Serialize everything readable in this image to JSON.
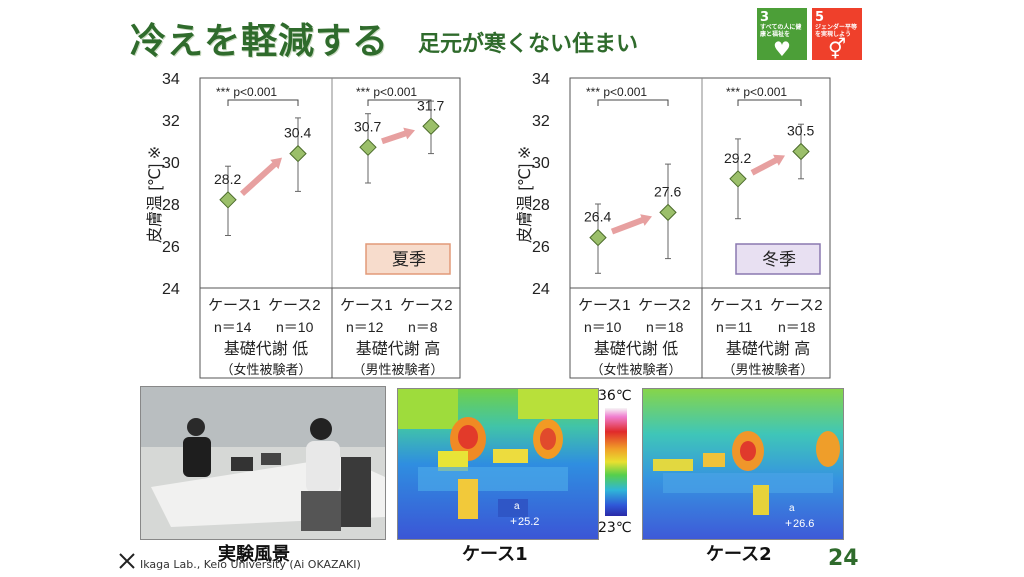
{
  "title": {
    "main": "冷えを軽減する",
    "sub": "足元が寒くない住まい"
  },
  "sdgs": [
    {
      "num": "3",
      "text": "すべての人に健康と福祉を",
      "icon": "♥",
      "color": "#4c9f38"
    },
    {
      "num": "5",
      "text": "ジェンダー平等を実現しよう",
      "icon": "⚥",
      "color": "#ef402b"
    }
  ],
  "chart_data": [
    {
      "type": "scatter",
      "season": "夏季",
      "ylabel": "皮膚温 [℃] ※",
      "ylim": [
        24,
        34
      ],
      "yticks": [
        24,
        26,
        28,
        30,
        32,
        34
      ],
      "groups": [
        {
          "label": "基礎代謝 低",
          "sub": "（女性被験者）",
          "cases": [
            "ケース1",
            "ケース2"
          ],
          "n": [
            "n＝14",
            "n＝10"
          ]
        },
        {
          "label": "基礎代謝 高",
          "sub": "（男性被験者）",
          "cases": [
            "ケース1",
            "ケース2"
          ],
          "n": [
            "n＝12",
            "n＝8"
          ]
        }
      ],
      "points": [
        {
          "value": 28.2,
          "err": [
            26.5,
            29.8
          ]
        },
        {
          "value": 30.4,
          "err": [
            28.6,
            32.1
          ]
        },
        {
          "value": 30.7,
          "err": [
            29.0,
            32.3
          ]
        },
        {
          "value": 31.7,
          "err": [
            30.4,
            32.9
          ]
        }
      ],
      "sig": [
        "*** p<0.001",
        "*** p<0.001"
      ]
    },
    {
      "type": "scatter",
      "season": "冬季",
      "ylabel": "皮膚温 [℃] ※",
      "ylim": [
        24,
        34
      ],
      "yticks": [
        24,
        26,
        28,
        30,
        32,
        34
      ],
      "groups": [
        {
          "label": "基礎代謝 低",
          "sub": "（女性被験者）",
          "cases": [
            "ケース1",
            "ケース2"
          ],
          "n": [
            "n＝10",
            "n＝18"
          ]
        },
        {
          "label": "基礎代謝 高",
          "sub": "（男性被験者）",
          "cases": [
            "ケース1",
            "ケース2"
          ],
          "n": [
            "n＝11",
            "n＝18"
          ]
        }
      ],
      "points": [
        {
          "value": 26.4,
          "err": [
            24.7,
            28.0
          ]
        },
        {
          "value": 27.6,
          "err": [
            25.4,
            29.9
          ]
        },
        {
          "value": 29.2,
          "err": [
            27.3,
            31.1
          ]
        },
        {
          "value": 30.5,
          "err": [
            29.2,
            31.8
          ]
        }
      ],
      "sig": [
        "*** p<0.001",
        "*** p<0.001"
      ]
    }
  ],
  "thermal": {
    "max": "36℃",
    "min": "23℃",
    "case1_reading": "25.2",
    "case2_reading": "26.6",
    "marker": "a"
  },
  "captions": {
    "photo": "実験風景",
    "case1": "ケース1",
    "case2": "ケース2"
  },
  "footer": {
    "lab": "Ikaga Lab., Keio University (Ai OKAZAKI)",
    "page": "24"
  }
}
